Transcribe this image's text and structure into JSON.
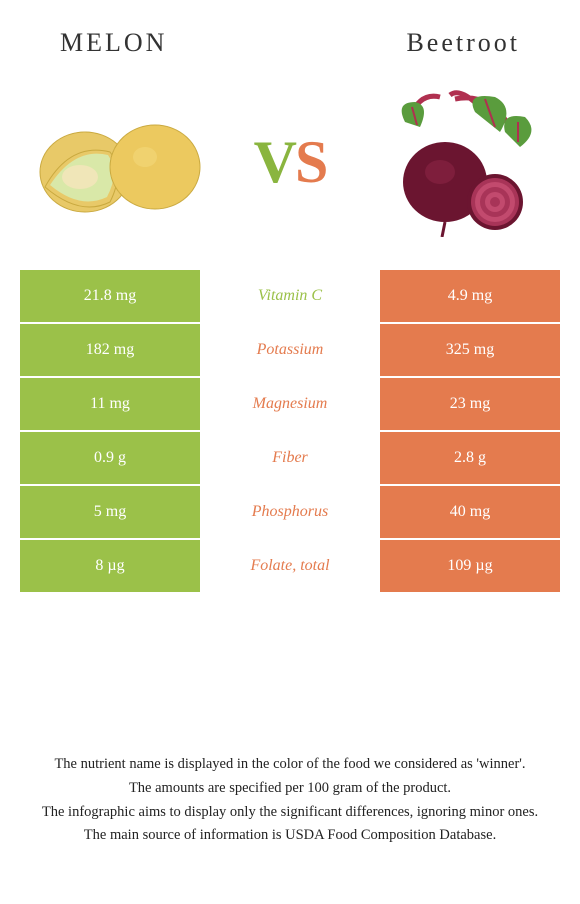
{
  "header": {
    "left_title": "MELON",
    "right_title": "Beetroot"
  },
  "vs": {
    "v": "V",
    "s": "S"
  },
  "colors": {
    "melon": "#9bc149",
    "beetroot": "#e47b4e",
    "row_border": "#ffffff"
  },
  "rows": [
    {
      "left": "21.8 mg",
      "nutrient": "Vitamin C",
      "right": "4.9 mg",
      "winner": "melon"
    },
    {
      "left": "182 mg",
      "nutrient": "Potassium",
      "right": "325 mg",
      "winner": "beetroot"
    },
    {
      "left": "11 mg",
      "nutrient": "Magnesium",
      "right": "23 mg",
      "winner": "beetroot"
    },
    {
      "left": "0.9 g",
      "nutrient": "Fiber",
      "right": "2.8 g",
      "winner": "beetroot"
    },
    {
      "left": "5 mg",
      "nutrient": "Phosphorus",
      "right": "40 mg",
      "winner": "beetroot"
    },
    {
      "left": "8 µg",
      "nutrient": "Folate, total",
      "right": "109 µg",
      "winner": "beetroot"
    }
  ],
  "footer": {
    "line1": "The nutrient name is displayed in the color of the food we considered as 'winner'.",
    "line2": "The amounts are specified per 100 gram of the product.",
    "line3": "The infographic aims to display only the significant differences, ignoring minor ones.",
    "line4": "The main source of information is USDA Food Composition Database."
  }
}
